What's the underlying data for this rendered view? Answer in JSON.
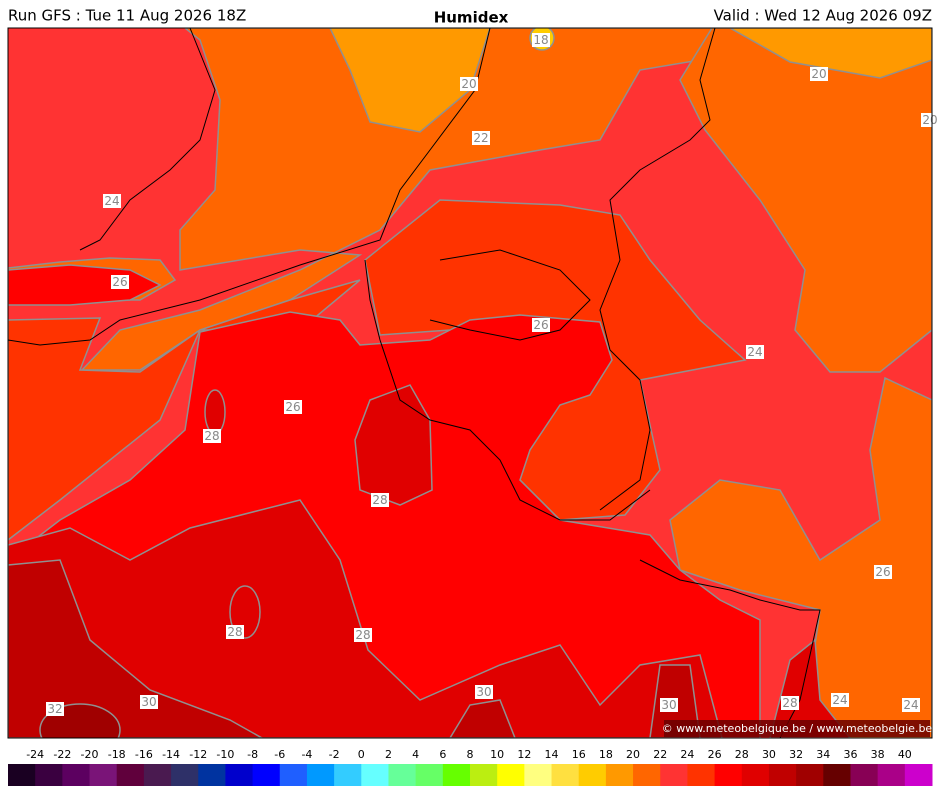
{
  "header": {
    "left": "Run GFS : Tue 11 Aug 2026 18Z",
    "title": "Humidex",
    "right": "Valid : Wed 12 Aug 2026 09Z"
  },
  "contour_labels": [
    18,
    20,
    20,
    20,
    22,
    24,
    26,
    26,
    24,
    26,
    28,
    28,
    26,
    28,
    28,
    30,
    30,
    32,
    30,
    28,
    24,
    24
  ],
  "copyright": "© www.meteobelgique.be / www.meteobelgie.be",
  "colorbar": {
    "ticks": [
      -24,
      -22,
      -20,
      -18,
      -16,
      -14,
      -12,
      -10,
      -8,
      -6,
      -4,
      -2,
      0,
      2,
      4,
      6,
      8,
      10,
      12,
      14,
      16,
      18,
      20,
      22,
      24,
      26,
      28,
      30,
      32,
      34,
      36,
      38,
      40
    ],
    "colors": [
      "#1a0022",
      "#3a0040",
      "#5c0060",
      "#7a1478",
      "#60003c",
      "#4a1a50",
      "#2e3068",
      "#0033a0",
      "#0000cc",
      "#0000ff",
      "#1f5fff",
      "#0099ff",
      "#33ccff",
      "#66ffff",
      "#66ff99",
      "#66ff66",
      "#66ff00",
      "#bbee11",
      "#ffff00",
      "#ffff80",
      "#ffe040",
      "#ffcc00",
      "#ff9900",
      "#ff6600",
      "#ff3333",
      "#ff3300",
      "#ff0000",
      "#e00000",
      "#c00000",
      "#a00000",
      "#660000",
      "#880055",
      "#aa0088",
      "#cc00cc"
    ]
  }
}
